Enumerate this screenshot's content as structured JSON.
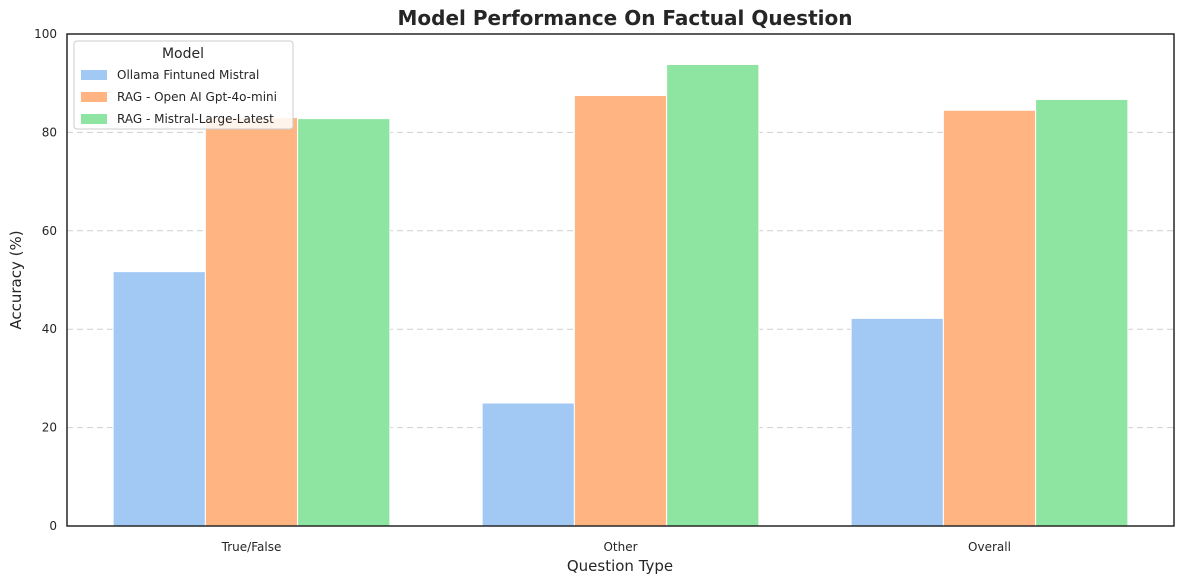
{
  "chart_data": {
    "type": "bar",
    "title": "Model Performance On Factual Question",
    "xlabel": "Question Type",
    "ylabel": "Accuracy (%)",
    "categories": [
      "True/False",
      "Other",
      "Overall"
    ],
    "ylim": [
      0,
      100
    ],
    "yticks": [
      0,
      20,
      40,
      60,
      80,
      100
    ],
    "grid": "y-dashed",
    "legend": {
      "title": "Model",
      "placement": "top-left"
    },
    "series": [
      {
        "name": "Ollama Fintuned Mistral",
        "values": [
          51.7,
          25.0,
          42.2
        ],
        "color": "#a1c9f4"
      },
      {
        "name": "RAG - Open AI Gpt-4o-mini",
        "values": [
          83.0,
          87.5,
          84.5
        ],
        "color": "#ffb482"
      },
      {
        "name": "RAG - Mistral-Large-Latest",
        "values": [
          82.8,
          93.8,
          86.7
        ],
        "color": "#8de5a1"
      }
    ]
  }
}
